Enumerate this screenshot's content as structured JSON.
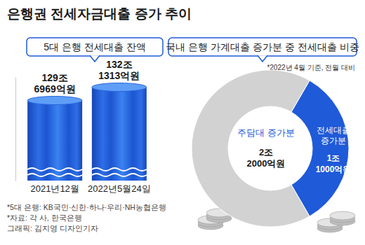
{
  "title": "은행권 전세자금대출 증가 추이",
  "footnotes": [
    "*5대 은행: KB국민·신한·하나·우리·NH농협은행",
    "*자료: 각 사, 한국은행",
    "그래픽: 김지영 디자인기자"
  ],
  "chart_data": [
    {
      "type": "bar",
      "title": "5대 은행 전세대출 잔액",
      "categories": [
        "2021년12월",
        "2022년5월24일"
      ],
      "values": [
        1296969,
        1321313
      ],
      "value_labels": [
        "129조 6969억원",
        "132조 1313억원"
      ],
      "color": "#1f5ad8",
      "ylim": [
        1150000,
        1340000
      ],
      "yticks": [],
      "tick_labels": "x",
      "data_labels": true
    },
    {
      "type": "pie",
      "title": "국내 은행 가계대출 증가분 중 전세대출 비중",
      "subtitle": "*2022년 4월 기준, 전월 대비",
      "categories": [
        "전세대출 증가분",
        "주담대 증가분"
      ],
      "values": [
        11000,
        22000
      ],
      "value_labels": [
        "1조 1000억원",
        "2조 2000억원"
      ],
      "colors": [
        "#1f5ad8",
        "#d2d2d2"
      ],
      "data_labels": true
    }
  ]
}
